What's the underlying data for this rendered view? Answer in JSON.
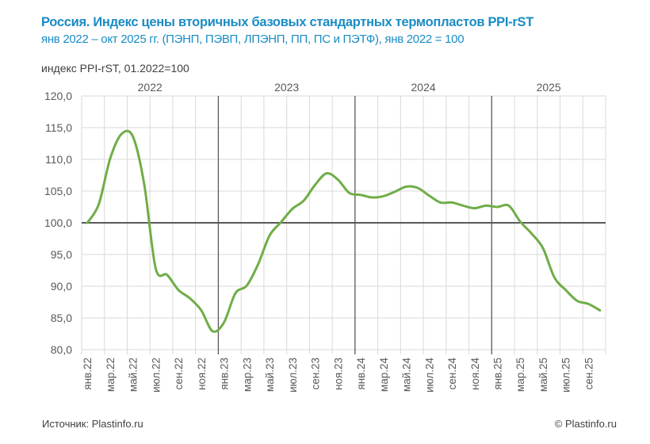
{
  "header": {
    "title": "Россия. Индекс цены вторичных базовых стандартных термопластов PPI-rST",
    "subtitle": "янв 2022 – окт 2025 гг. (ПЭНП, ПЭВП, ЛПЭНП, ПП, ПС и ПЭТФ), янв 2022 = 100",
    "y_axis_caption": "индекс PPI-rST, 01.2022=100"
  },
  "footer": {
    "source": "Источник: Plastinfo.ru",
    "copyright": "© Plastinfo.ru"
  },
  "colors": {
    "title": "#1a8cc4",
    "line": "#70ad47",
    "grid": "#d9d9d9",
    "axis_dark": "#595959",
    "text": "#595959"
  },
  "chart_data": {
    "type": "line",
    "title": "Россия. Индекс цены вторичных базовых стандартных термопластов PPI-rST",
    "ylabel": "индекс PPI-rST, 01.2022=100",
    "ylim": [
      80,
      120
    ],
    "yticks": [
      "80,0",
      "85,0",
      "90,0",
      "95,0",
      "100,0",
      "105,0",
      "110,0",
      "115,0",
      "120,0"
    ],
    "ytick_values": [
      80,
      85,
      90,
      95,
      100,
      105,
      110,
      115,
      120
    ],
    "reference_line": 100,
    "grid": true,
    "years": [
      {
        "label": "2022",
        "months": 12
      },
      {
        "label": "2023",
        "months": 12
      },
      {
        "label": "2024",
        "months": 12
      },
      {
        "label": "2025",
        "months": 10
      }
    ],
    "x_tick_labels": [
      "янв.22",
      "мар.22",
      "май.22",
      "июл.22",
      "сен.22",
      "ноя.22",
      "янв.23",
      "мар.23",
      "май.23",
      "июл.23",
      "сен.23",
      "ноя.23",
      "янв.24",
      "мар.24",
      "май.24",
      "июл.24",
      "сен.24",
      "ноя.24",
      "янв.25",
      "мар.25",
      "май.25",
      "июл.25",
      "сен.25"
    ],
    "series": [
      {
        "name": "PPI-rST",
        "values": [
          100.0,
          102.9,
          110.1,
          114.0,
          113.6,
          106.0,
          92.8,
          91.8,
          89.4,
          88.1,
          86.2,
          82.9,
          84.3,
          88.9,
          90.1,
          93.5,
          98.0,
          100.1,
          102.2,
          103.5,
          106.0,
          107.8,
          106.8,
          104.7,
          104.4,
          104.0,
          104.2,
          104.9,
          105.7,
          105.5,
          104.3,
          103.2,
          103.2,
          102.7,
          102.3,
          102.7,
          102.5,
          102.7,
          100.2,
          98.3,
          96.0,
          91.4,
          89.4,
          87.7,
          87.2,
          86.2
        ]
      }
    ]
  }
}
